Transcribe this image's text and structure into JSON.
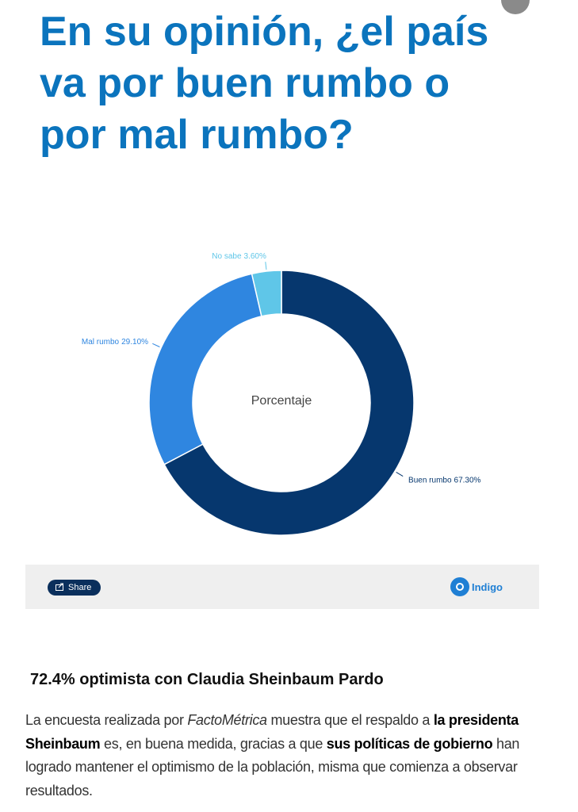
{
  "header": {
    "title": "En su opinión, ¿el país va por buen rumbo o por mal rumbo?"
  },
  "chart_data": {
    "type": "pie",
    "title": "Porcentaje",
    "categories": [
      "Buen rumbo",
      "Mal rumbo",
      "No sabe"
    ],
    "values": [
      67.3,
      29.1,
      3.6
    ],
    "value_labels": [
      "67.30%",
      "29.10%",
      "3.60%"
    ],
    "colors": [
      "#06376e",
      "#2f86e0",
      "#5fc6e8"
    ]
  },
  "toolbar": {
    "share": "Share",
    "logo": "Indigo"
  },
  "article": {
    "heading": "72.4% optimista con Claudia Sheinbaum Pardo",
    "paragraph": [
      "La encuesta realizada por ",
      "FactoMétrica",
      " muestra que el respaldo a ",
      "la presidenta Sheinbaum",
      " es, en buena medida, gracias a que ",
      "sus políticas de gobierno",
      " han logrado mantener el optimismo de la población, misma que comienza a observar resultados."
    ]
  }
}
